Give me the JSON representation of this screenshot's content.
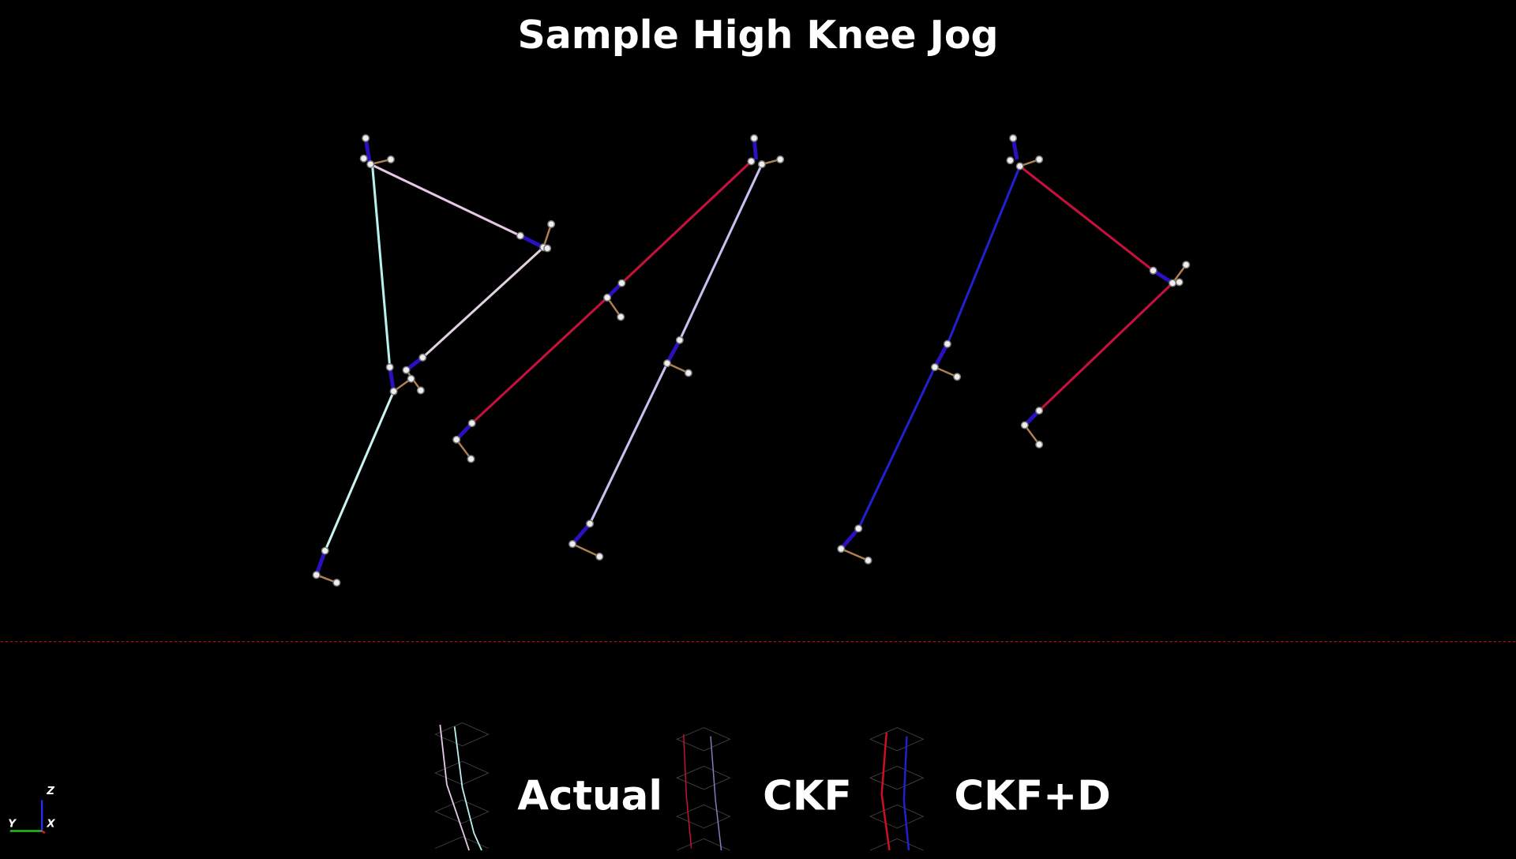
{
  "header": {
    "title": "Sample High Knee Jog"
  },
  "legend": {
    "items": [
      {
        "label": "Actual"
      },
      {
        "label": "CKF"
      },
      {
        "label": "CKF+D"
      }
    ]
  },
  "axes_triad": {
    "z": "Z",
    "y": "Y",
    "x": "X"
  }
}
